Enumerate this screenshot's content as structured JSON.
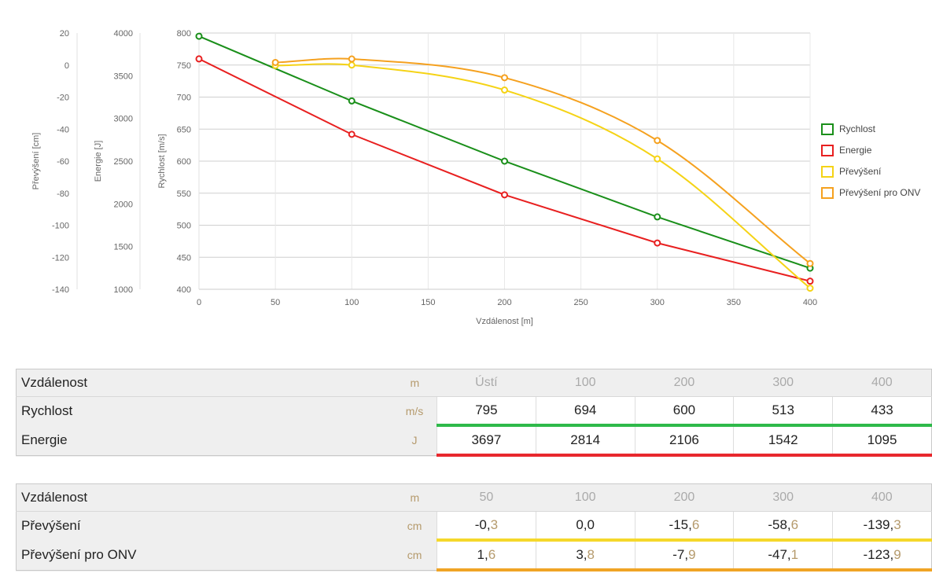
{
  "chart_data": {
    "type": "line",
    "x": [
      0,
      50,
      100,
      200,
      300,
      400
    ],
    "xlabel": "Vzdálenost [m]",
    "xlim": [
      0,
      400
    ],
    "xticks": [
      "0",
      "50",
      "100",
      "150",
      "200",
      "250",
      "300",
      "350",
      "400"
    ],
    "axes": [
      {
        "id": "velocity",
        "label": "Rychlost [m/s]",
        "range": [
          400,
          800
        ],
        "ticks": [
          "400",
          "450",
          "500",
          "550",
          "600",
          "650",
          "700",
          "750",
          "800"
        ]
      },
      {
        "id": "energy",
        "label": "Energie [J]",
        "range": [
          1000,
          4000
        ],
        "ticks": [
          "1000",
          "1500",
          "2000",
          "2500",
          "3000",
          "3500",
          "4000"
        ]
      },
      {
        "id": "drop",
        "label": "Převýšení [cm]",
        "range": [
          -140,
          20
        ],
        "ticks": [
          "-140",
          "-120",
          "-100",
          "-80",
          "-60",
          "-40",
          "-20",
          "0",
          "20"
        ]
      }
    ],
    "series": [
      {
        "name": "Rychlost",
        "axis": "velocity",
        "color": "#1a8f1a",
        "x": [
          0,
          100,
          200,
          300,
          400
        ],
        "values": [
          795,
          694,
          600,
          513,
          433
        ],
        "smooth": false
      },
      {
        "name": "Energie",
        "axis": "energy",
        "color": "#e82020",
        "x": [
          0,
          100,
          200,
          300,
          400
        ],
        "values": [
          3697,
          2814,
          2106,
          1542,
          1095
        ],
        "smooth": false
      },
      {
        "name": "Převýšení",
        "axis": "drop",
        "color": "#f5d316",
        "x": [
          50,
          100,
          200,
          300,
          400
        ],
        "values": [
          -0.3,
          0.0,
          -15.6,
          -58.6,
          -139.3
        ],
        "smooth": true
      },
      {
        "name": "Převýšení pro ONV",
        "axis": "drop",
        "color": "#f5a11f",
        "x": [
          50,
          100,
          200,
          300,
          400
        ],
        "values": [
          1.6,
          3.8,
          -7.9,
          -47.1,
          -123.9
        ],
        "smooth": true
      }
    ],
    "grid": true,
    "legend": "right"
  },
  "table1": {
    "header": {
      "label": "Vzdálenost",
      "unit": "m",
      "values": [
        "Ústí",
        "100",
        "200",
        "300",
        "400"
      ]
    },
    "rows": [
      {
        "label": "Rychlost",
        "unit": "m/s",
        "color": "#2fb94a",
        "values": [
          [
            "795",
            ""
          ],
          [
            "694",
            ""
          ],
          [
            "600",
            ""
          ],
          [
            "513",
            ""
          ],
          [
            "433",
            ""
          ]
        ]
      },
      {
        "label": "Energie",
        "unit": "J",
        "color": "#e8282d",
        "values": [
          [
            "3697",
            ""
          ],
          [
            "2814",
            ""
          ],
          [
            "2106",
            ""
          ],
          [
            "1542",
            ""
          ],
          [
            "1095",
            ""
          ]
        ]
      }
    ]
  },
  "table2": {
    "header": {
      "label": "Vzdálenost",
      "unit": "m",
      "values": [
        "50",
        "100",
        "200",
        "300",
        "400"
      ]
    },
    "rows": [
      {
        "label": "Převýšení",
        "unit": "cm",
        "color": "#f5d82b",
        "values": [
          [
            "-0,",
            "3"
          ],
          [
            "0,0",
            ""
          ],
          [
            "-15,",
            "6"
          ],
          [
            "-58,",
            "6"
          ],
          [
            "-139,",
            "3"
          ]
        ]
      },
      {
        "label": "Převýšení pro ONV",
        "unit": "cm",
        "color": "#f0a425",
        "values": [
          [
            "1,",
            "6"
          ],
          [
            "3,",
            "8"
          ],
          [
            "-7,",
            "9"
          ],
          [
            "-47,",
            "1"
          ],
          [
            "-123,",
            "9"
          ]
        ]
      }
    ]
  }
}
